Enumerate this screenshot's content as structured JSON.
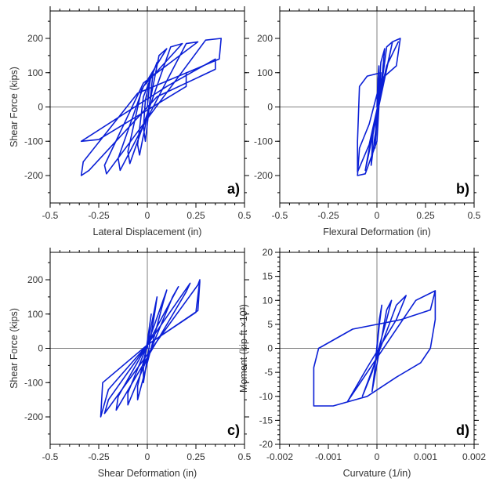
{
  "colors": {
    "series": "#0a1fd6",
    "axis": "#000000",
    "zero_line": "#7f7f7f"
  },
  "chart_data": [
    {
      "type": "line",
      "letter": "a)",
      "xlabel": "Lateral Displacement (in)",
      "ylabel": "Shear Force (kips)",
      "xlim": [
        -0.5,
        0.5
      ],
      "ylim": [
        -280,
        280
      ],
      "xticks": [
        -0.5,
        -0.25,
        0,
        0.25,
        0.5
      ],
      "xtick_labels": [
        "-0.5",
        "-0.25",
        "0",
        "0.25",
        "0.5"
      ],
      "yticks": [
        -200,
        -100,
        0,
        100,
        200
      ],
      "ytick_labels": [
        "-200",
        "-100",
        "0",
        "100",
        "200"
      ],
      "series": [
        {
          "style": "hysteresis",
          "points": [
            [
              0,
              0
            ],
            [
              0.01,
              60
            ],
            [
              0.02,
              95
            ],
            [
              -0.01,
              20
            ],
            [
              -0.02,
              -60
            ],
            [
              -0.01,
              -100
            ],
            [
              0.03,
              100
            ],
            [
              0.05,
              130
            ],
            [
              -0.02,
              30
            ],
            [
              -0.05,
              -110
            ],
            [
              -0.04,
              -140
            ],
            [
              0.06,
              150
            ],
            [
              0.1,
              170
            ],
            [
              -0.03,
              50
            ],
            [
              -0.1,
              -130
            ],
            [
              -0.09,
              -165
            ],
            [
              0.12,
              175
            ],
            [
              0.18,
              185
            ],
            [
              -0.02,
              60
            ],
            [
              -0.15,
              -150
            ],
            [
              -0.14,
              -185
            ],
            [
              0.2,
              185
            ],
            [
              0.26,
              190
            ],
            [
              -0.02,
              70
            ],
            [
              -0.22,
              -170
            ],
            [
              -0.21,
              -195
            ],
            [
              0.3,
              195
            ],
            [
              0.38,
              200
            ],
            [
              0.37,
              140
            ],
            [
              -0.05,
              40
            ],
            [
              -0.33,
              -160
            ],
            [
              -0.34,
              -200
            ],
            [
              -0.3,
              -185
            ],
            [
              0.05,
              30
            ],
            [
              0.35,
              110
            ],
            [
              0.35,
              140
            ],
            [
              0.1,
              60
            ],
            [
              -0.34,
              -100
            ],
            [
              -0.25,
              -95
            ],
            [
              0.2,
              60
            ],
            [
              0.2,
              100
            ]
          ]
        }
      ]
    },
    {
      "type": "line",
      "letter": "b)",
      "xlabel": "Flexural Deformation (in)",
      "ylabel": "",
      "xlim": [
        -0.5,
        0.5
      ],
      "ylim": [
        -280,
        280
      ],
      "xticks": [
        -0.5,
        -0.25,
        0,
        0.25,
        0.5
      ],
      "xtick_labels": [
        "-0.5",
        "-0.25",
        "0",
        "0.25",
        "0.5"
      ],
      "yticks": [
        -200,
        -100,
        0,
        100,
        200
      ],
      "ytick_labels": [
        "-200",
        "-100",
        "0",
        "100",
        "200"
      ],
      "series": [
        {
          "style": "hysteresis",
          "points": [
            [
              0,
              0
            ],
            [
              0.005,
              80
            ],
            [
              0.01,
              120
            ],
            [
              0.005,
              30
            ],
            [
              -0.005,
              -60
            ],
            [
              -0.01,
              -120
            ],
            [
              0.02,
              130
            ],
            [
              0.04,
              170
            ],
            [
              0.02,
              50
            ],
            [
              -0.02,
              -80
            ],
            [
              -0.03,
              -170
            ],
            [
              0.05,
              175
            ],
            [
              0.08,
              190
            ],
            [
              0.03,
              60
            ],
            [
              -0.03,
              -90
            ],
            [
              -0.06,
              -185
            ],
            [
              0.08,
              190
            ],
            [
              0.12,
              200
            ],
            [
              0.1,
              120
            ],
            [
              0.02,
              80
            ],
            [
              -0.04,
              -50
            ],
            [
              -0.09,
              -120
            ],
            [
              -0.1,
              -200
            ],
            [
              -0.06,
              -195
            ],
            [
              0.0,
              -100
            ],
            [
              0.02,
              100
            ],
            [
              -0.05,
              90
            ],
            [
              -0.09,
              60
            ],
            [
              -0.1,
              -100
            ],
            [
              -0.1,
              -190
            ],
            [
              -0.04,
              -110
            ],
            [
              0.05,
              120
            ],
            [
              0.11,
              190
            ]
          ]
        }
      ]
    },
    {
      "type": "line",
      "letter": "c)",
      "xlabel": "Shear Deformation (in)",
      "ylabel": "Shear Force (kips)",
      "xlim": [
        -0.5,
        0.5
      ],
      "ylim": [
        -280,
        280
      ],
      "xticks": [
        -0.5,
        -0.25,
        0,
        0.25,
        0.5
      ],
      "xtick_labels": [
        "-0.5",
        "-0.25",
        "0",
        "0.25",
        "0.5"
      ],
      "yticks": [
        -200,
        -100,
        0,
        100,
        200
      ],
      "ytick_labels": [
        "-200",
        "-100",
        "0",
        "100",
        "200"
      ],
      "series": [
        {
          "style": "hysteresis",
          "points": [
            [
              0,
              0
            ],
            [
              0.01,
              60
            ],
            [
              0.02,
              100
            ],
            [
              0.0,
              20
            ],
            [
              -0.02,
              -60
            ],
            [
              -0.02,
              -100
            ],
            [
              0.04,
              110
            ],
            [
              0.05,
              150
            ],
            [
              0.0,
              10
            ],
            [
              -0.05,
              -110
            ],
            [
              -0.05,
              -150
            ],
            [
              0.08,
              130
            ],
            [
              0.1,
              170
            ],
            [
              0.0,
              10
            ],
            [
              -0.1,
              -130
            ],
            [
              -0.1,
              -165
            ],
            [
              0.13,
              150
            ],
            [
              0.16,
              180
            ],
            [
              0.0,
              10
            ],
            [
              -0.15,
              -140
            ],
            [
              -0.16,
              -180
            ],
            [
              0.2,
              165
            ],
            [
              0.22,
              190
            ],
            [
              0.0,
              10
            ],
            [
              -0.2,
              -150
            ],
            [
              -0.22,
              -190
            ],
            [
              0.26,
              185
            ],
            [
              0.27,
              200
            ],
            [
              0.25,
              105
            ],
            [
              0.0,
              10
            ],
            [
              -0.23,
              -100
            ],
            [
              -0.24,
              -200
            ],
            [
              -0.2,
              -120
            ],
            [
              0.0,
              10
            ],
            [
              0.26,
              110
            ],
            [
              0.27,
              195
            ]
          ]
        }
      ]
    },
    {
      "type": "line",
      "letter": "d)",
      "xlabel": "Curvature (1/in)",
      "ylabel": "Moment (kip-ft ×10³)",
      "xlim": [
        -0.002,
        0.002
      ],
      "ylim": [
        -20,
        20
      ],
      "xticks": [
        -0.002,
        -0.001,
        0,
        0.001,
        0.002
      ],
      "xtick_labels": [
        "-0.002",
        "-0.001",
        "0",
        "0.001",
        "0.002"
      ],
      "yticks": [
        -20,
        -15,
        -10,
        -5,
        0,
        5,
        10,
        15,
        20
      ],
      "ytick_labels": [
        "-20",
        "-15",
        "-10",
        "-5",
        "0",
        "5",
        "10",
        "15",
        "20"
      ],
      "series": [
        {
          "style": "hysteresis",
          "points": [
            [
              0,
              0
            ],
            [
              5e-05,
              5
            ],
            [
              0.0001,
              9
            ],
            [
              5e-05,
              6
            ],
            [
              -5e-05,
              -5
            ],
            [
              -0.0001,
              -9
            ],
            [
              0.0002,
              8
            ],
            [
              0.0003,
              10
            ],
            [
              0.0002,
              6
            ],
            [
              -0.0001,
              -5
            ],
            [
              -0.0003,
              -10
            ],
            [
              0.0004,
              9
            ],
            [
              0.0006,
              11
            ],
            [
              0.0004,
              6
            ],
            [
              -0.0002,
              -4
            ],
            [
              -0.0006,
              -11
            ],
            [
              0.0008,
              10
            ],
            [
              0.0012,
              12
            ],
            [
              0.0011,
              8
            ],
            [
              0.0005,
              6
            ],
            [
              -0.0005,
              4
            ],
            [
              -0.0012,
              0
            ],
            [
              -0.0013,
              -4
            ],
            [
              -0.0013,
              -12
            ],
            [
              -0.0009,
              -12
            ],
            [
              -0.0002,
              -10
            ],
            [
              0.0004,
              -6
            ],
            [
              0.0009,
              -3
            ],
            [
              0.0011,
              0
            ],
            [
              0.0012,
              6
            ],
            [
              0.0012,
              12
            ]
          ]
        }
      ]
    }
  ]
}
